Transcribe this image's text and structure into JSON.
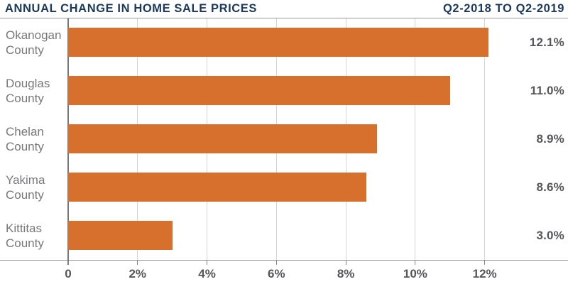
{
  "header": {
    "title": "ANNUAL CHANGE IN HOME SALE PRICES",
    "period": "Q2-2018 TO Q2-2019"
  },
  "chart_data": {
    "type": "bar",
    "orientation": "horizontal",
    "title": "ANNUAL CHANGE IN HOME SALE PRICES",
    "subtitle_right": "Q2-2018 TO Q2-2019",
    "categories": [
      "Okanogan County",
      "Douglas County",
      "Chelan County",
      "Yakima County",
      "Kittitas County"
    ],
    "category_lines": [
      [
        "Okanogan",
        "County"
      ],
      [
        "Douglas",
        "County"
      ],
      [
        "Chelan",
        "County"
      ],
      [
        "Yakima",
        "County"
      ],
      [
        "Kittitas",
        "County"
      ]
    ],
    "values": [
      12.1,
      11.0,
      8.9,
      8.6,
      3.0
    ],
    "value_labels": [
      "12.1%",
      "11.0%",
      "8.9%",
      "8.6%",
      "3.0%"
    ],
    "xlabel": "",
    "ylabel": "",
    "xlim": [
      0,
      14.4
    ],
    "ticks": [
      {
        "value": 0,
        "label": "0"
      },
      {
        "value": 2,
        "label": "2%"
      },
      {
        "value": 4,
        "label": "4%"
      },
      {
        "value": 6,
        "label": "6%"
      },
      {
        "value": 8,
        "label": "8%"
      },
      {
        "value": 10,
        "label": "10%"
      },
      {
        "value": 12,
        "label": "12%"
      }
    ],
    "grid": "vertical-only",
    "legend": "none",
    "bar_color": "#d8702d",
    "colors": {
      "title_navy": "#1a395c",
      "category_gray": "#77787b",
      "value_gray": "#56575b",
      "gridline": "#d2d4d5",
      "axis_line": "#96989b",
      "zero_line": "#75777b"
    }
  }
}
